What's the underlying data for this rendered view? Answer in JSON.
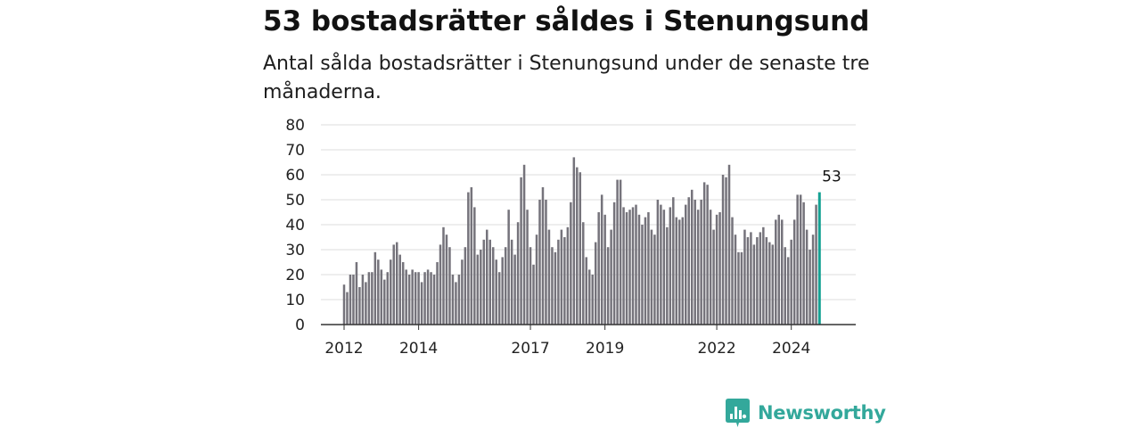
{
  "header": {
    "title": "53 bostadsrätter såldes i Stenungsund",
    "subtitle": "Antal sålda bostadsrätter i Stenungsund under de senaste tre månaderna."
  },
  "brand": {
    "name": "Newsworthy",
    "icon": "newsworthy-logo-icon",
    "color": "#33a89b"
  },
  "colors": {
    "bar": "#75737b",
    "highlight": "#15a193",
    "grid": "#dcdcdc",
    "axis": "#333333"
  },
  "chart_data": {
    "type": "bar",
    "title": "53 bostadsrätter såldes i Stenungsund",
    "subtitle": "Antal sålda bostadsrätter i Stenungsund under de senaste tre månaderna.",
    "xlabel": "",
    "ylabel": "",
    "ylim": [
      0,
      80
    ],
    "yticks": [
      0,
      10,
      20,
      30,
      40,
      50,
      60,
      70,
      80
    ],
    "grid": true,
    "legend": "none",
    "x_start": "2012-01",
    "x_end": "2025-02",
    "xtick_labels": [
      {
        "label": "2012",
        "date": "2012-01"
      },
      {
        "label": "2014",
        "date": "2014-01"
      },
      {
        "label": "2017",
        "date": "2017-01"
      },
      {
        "label": "2019",
        "date": "2019-01"
      },
      {
        "label": "2022",
        "date": "2022-01"
      },
      {
        "label": "2024",
        "date": "2024-01"
      }
    ],
    "values": [
      16,
      13,
      20,
      20,
      25,
      15,
      20,
      17,
      21,
      21,
      29,
      26,
      22,
      18,
      21,
      26,
      32,
      33,
      28,
      25,
      22,
      20,
      22,
      21,
      21,
      17,
      21,
      22,
      21,
      20,
      25,
      32,
      39,
      36,
      31,
      20,
      17,
      20,
      26,
      31,
      53,
      55,
      47,
      28,
      30,
      34,
      38,
      34,
      31,
      26,
      21,
      27,
      31,
      46,
      34,
      28,
      41,
      59,
      64,
      46,
      31,
      24,
      36,
      50,
      55,
      50,
      38,
      31,
      29,
      34,
      38,
      35,
      39,
      49,
      67,
      63,
      61,
      41,
      27,
      22,
      20,
      33,
      45,
      52,
      44,
      31,
      38,
      49,
      58,
      58,
      47,
      45,
      46,
      47,
      48,
      44,
      40,
      43,
      45,
      38,
      36,
      50,
      48,
      46,
      39,
      47,
      51,
      43,
      42,
      43,
      48,
      51,
      54,
      50,
      46,
      50,
      57,
      56,
      46,
      38,
      44,
      45,
      60,
      59,
      64,
      43,
      36,
      29,
      29,
      38,
      35,
      37,
      32,
      35,
      37,
      39,
      35,
      33,
      32,
      42,
      44,
      42,
      31,
      27,
      34,
      42,
      52,
      52,
      49,
      38,
      30,
      36,
      48,
      53
    ],
    "highlight": {
      "date": "2025-02",
      "value": 53,
      "label": "53"
    }
  }
}
